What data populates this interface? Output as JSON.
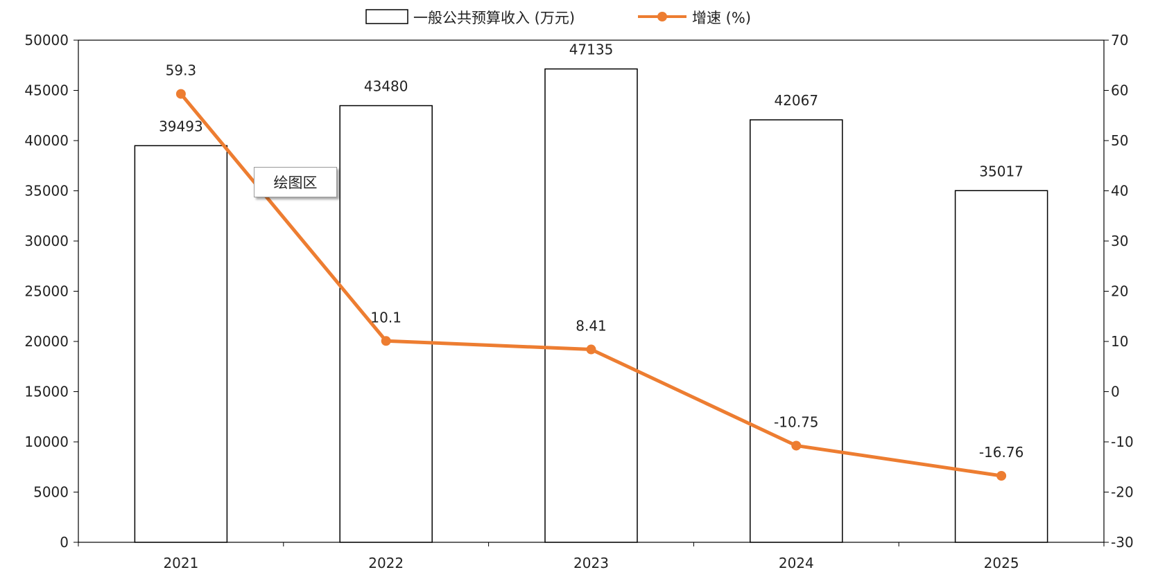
{
  "chart_data": {
    "type": "bar",
    "categories": [
      "2021",
      "2022",
      "2023",
      "2024",
      "2025"
    ],
    "series": [
      {
        "name": "一般公共预算收入 (万元)",
        "type": "bar",
        "axis": "left",
        "values": [
          39493,
          43480,
          47135,
          42067,
          35017
        ],
        "labels": [
          "39493",
          "43480",
          "47135",
          "42067",
          "35017"
        ],
        "color": "#ffffff",
        "stroke": "#000000"
      },
      {
        "name": "增速 (%)",
        "type": "line",
        "axis": "right",
        "values": [
          59.3,
          10.1,
          8.41,
          -10.75,
          -16.76
        ],
        "labels": [
          "59.3",
          "10.1",
          "8.41",
          "-10.75",
          "-16.76"
        ],
        "color": "#ed7d31"
      }
    ],
    "y_left": {
      "min": 0,
      "max": 50000,
      "ticks": [
        "0",
        "5000",
        "10000",
        "15000",
        "20000",
        "25000",
        "30000",
        "35000",
        "40000",
        "45000",
        "50000"
      ]
    },
    "y_right": {
      "min": -30,
      "max": 70,
      "ticks": [
        "-30",
        "-20",
        "-10",
        "0",
        "10",
        "20",
        "30",
        "40",
        "50",
        "60",
        "70"
      ]
    },
    "legend_position": "top",
    "grid": false,
    "title": "",
    "xlabel": "",
    "ylabel": ""
  },
  "tooltip": {
    "text": "绘图区"
  }
}
